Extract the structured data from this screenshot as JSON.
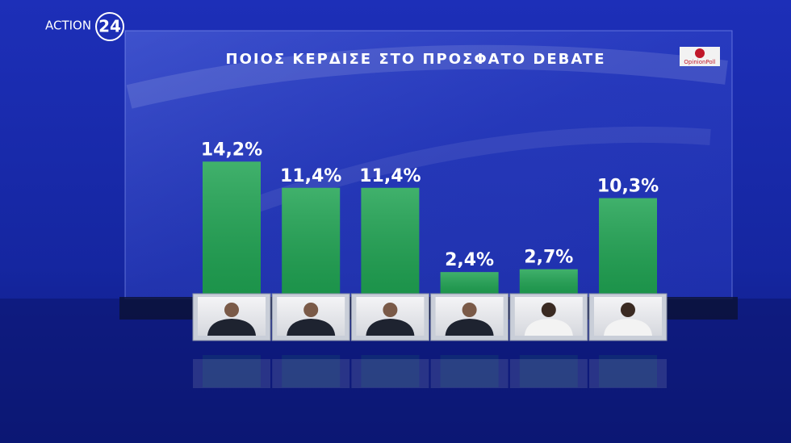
{
  "channel": "ACTION",
  "channel_number": "24",
  "chart_data": {
    "type": "bar",
    "title": "ΠΟΙΟΣ ΚΕΡΔΙΣΕ ΣΤΟ ΠΡΟΣΦΑΤΟ DEBATE",
    "source": "OpinionPoll",
    "categories": [
      null,
      null,
      null,
      null,
      null,
      null
    ],
    "values": [
      14.2,
      11.4,
      11.4,
      2.4,
      2.7,
      10.3
    ],
    "value_labels": [
      "14,2%",
      "11,4%",
      "11,4%",
      "2,4%",
      "2,7%",
      "10,3%"
    ],
    "color": "#1fa352"
  }
}
